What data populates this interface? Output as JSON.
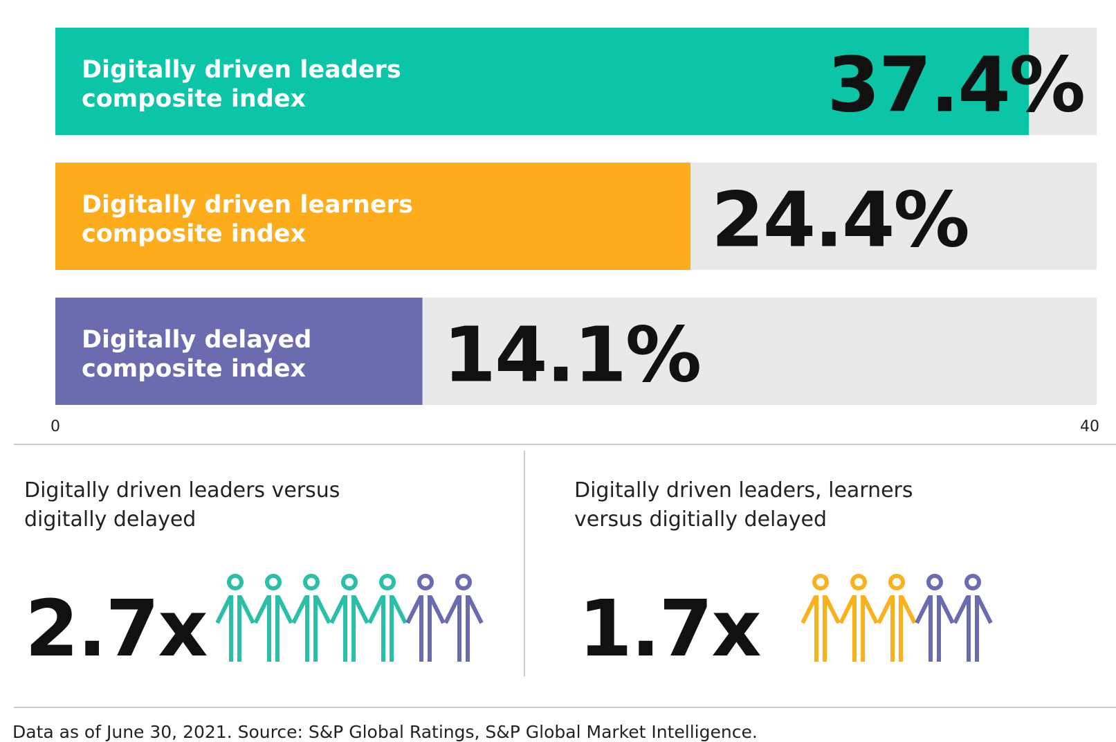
{
  "chart_data": {
    "type": "bar",
    "orientation": "horizontal",
    "categories": [
      [
        "Digitally driven leaders",
        "composite index"
      ],
      [
        "Digitally driven learners",
        "composite index"
      ],
      [
        "Digitally delayed",
        "composite index"
      ]
    ],
    "values": [
      37.4,
      24.4,
      14.1
    ],
    "value_labels": [
      "37.4%",
      "24.4%",
      "14.1%"
    ],
    "colors": [
      "#0cc4a6",
      "#fdac1c",
      "#6b6bb0"
    ],
    "track_color": "#e8e9e8",
    "xlim": [
      0,
      40
    ],
    "x_tick_labels": [
      "0",
      "40"
    ],
    "grid": false
  },
  "panels": [
    {
      "title_lines": [
        "Digitally driven leaders versus",
        "digitally delayed"
      ],
      "ratio": "2.7x",
      "people_colors": [
        "#2bbfa7",
        "#2bbfa7",
        "#2bbfa7",
        "#2bbfa7",
        "#2bbfa7",
        "#6b6bb0",
        "#6b6bb0"
      ]
    },
    {
      "title_lines": [
        "Digitally driven leaders, learners",
        "versus digitially delayed"
      ],
      "ratio": "1.7x",
      "people_colors": [
        "#f9b21e",
        "#f9b21e",
        "#f9b21e",
        "#6b6bb0",
        "#6b6bb0"
      ]
    }
  ],
  "footnote": "Data as of June 30, 2021. Source: S&P Global Ratings, S&P Global Market Intelligence."
}
